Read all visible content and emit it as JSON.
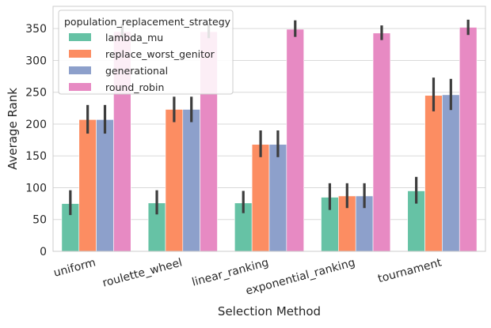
{
  "chart_data": {
    "type": "bar",
    "xlabel": "Selection Method",
    "ylabel": "Average Rank",
    "ylim": [
      0,
      385
    ],
    "yticks": [
      0,
      50,
      100,
      150,
      200,
      250,
      300,
      350
    ],
    "grid": "horizontal",
    "legend": {
      "title": "population_replacement_strategy",
      "placement": "top-left"
    },
    "categories": [
      "uniform",
      "roulette_wheel",
      "linear_ranking",
      "exponential_ranking",
      "tournament"
    ],
    "series": [
      {
        "name": "lambda_mu",
        "color": "#66c2a5",
        "values": [
          75,
          76,
          76,
          85,
          95
        ],
        "ci": [
          [
            57,
            96
          ],
          [
            58,
            96
          ],
          [
            60,
            95
          ],
          [
            65,
            107
          ],
          [
            75,
            117
          ]
        ]
      },
      {
        "name": "replace_worst_genitor",
        "color": "#fc8d62",
        "values": [
          207,
          223,
          168,
          87,
          245
        ],
        "ci": [
          [
            185,
            230
          ],
          [
            203,
            243
          ],
          [
            148,
            190
          ],
          [
            68,
            107
          ],
          [
            220,
            273
          ]
        ]
      },
      {
        "name": "generational",
        "color": "#8da0cb",
        "values": [
          207,
          223,
          168,
          87,
          246
        ],
        "ci": [
          [
            185,
            230
          ],
          [
            203,
            243
          ],
          [
            148,
            190
          ],
          [
            68,
            107
          ],
          [
            222,
            271
          ]
        ]
      },
      {
        "name": "round_robin",
        "color": "#e78ac3",
        "values": [
          345,
          345,
          349,
          343,
          352
        ],
        "ci": [
          [
            335,
            357
          ],
          [
            335,
            357
          ],
          [
            337,
            363
          ],
          [
            332,
            355
          ],
          [
            340,
            364
          ]
        ]
      }
    ]
  }
}
